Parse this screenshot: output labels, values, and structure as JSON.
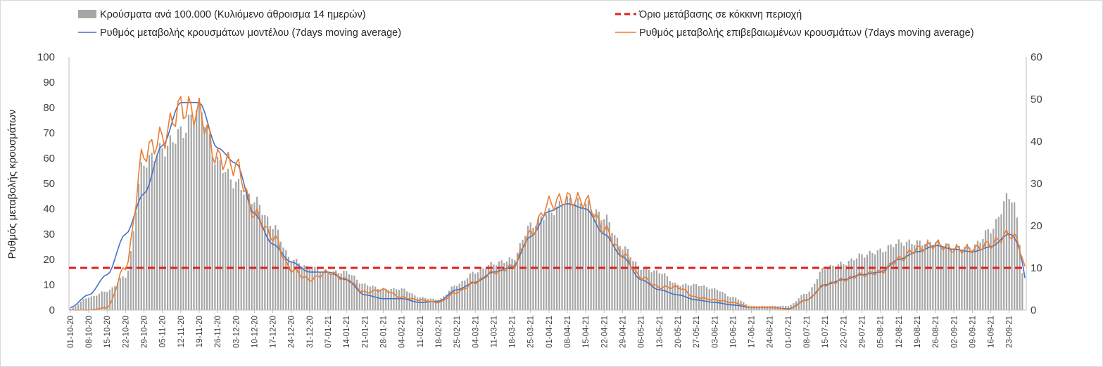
{
  "chart_data": {
    "type": "bar+line",
    "title": "",
    "xlabel": "",
    "ylabel": "Ρυθμός μεταβολής κρουσμάτων",
    "ylim_left": [
      0,
      100
    ],
    "ylim_right": [
      0,
      60
    ],
    "yticks_left": [
      0,
      10,
      20,
      30,
      40,
      50,
      60,
      70,
      80,
      90,
      100
    ],
    "yticks_right": [
      0,
      10,
      20,
      30,
      40,
      50,
      60
    ],
    "grid": false,
    "legend_position": "top",
    "x_tick_labels": [
      "01-10-20",
      "08-10-20",
      "15-10-20",
      "22-10-20",
      "29-10-20",
      "05-11-20",
      "12-11-20",
      "19-11-20",
      "26-11-20",
      "03-12-20",
      "10-12-20",
      "17-12-20",
      "24-12-20",
      "31-12-20",
      "07-01-21",
      "14-01-21",
      "21-01-21",
      "28-01-21",
      "04-02-21",
      "11-02-21",
      "18-02-21",
      "25-02-21",
      "04-03-21",
      "11-03-21",
      "18-03-21",
      "25-03-21",
      "01-04-21",
      "08-04-21",
      "15-04-21",
      "22-04-21",
      "29-04-21",
      "06-05-21",
      "13-05-21",
      "20-05-21",
      "27-05-21",
      "03-06-21",
      "10-06-21",
      "17-06-21",
      "24-06-21",
      "01-07-21",
      "08-07-21",
      "15-07-21",
      "22-07-21",
      "29-07-21",
      "05-08-21",
      "12-08-21",
      "19-08-21",
      "26-08-21",
      "02-09-21",
      "09-09-21",
      "16-09-21",
      "23-09-21"
    ],
    "threshold": 10,
    "series": [
      {
        "name": "Κρούσματα ανά 100.000 (Κυλιόμενο άθροισμα 14 ημερών)",
        "kind": "bar",
        "axis": "right",
        "color": "#a6a6a6",
        "weekly_values": [
          0.4,
          3,
          4.5,
          8,
          35,
          38,
          42,
          48,
          35,
          30,
          26,
          20,
          12,
          10,
          9,
          9,
          6,
          5,
          5,
          3,
          2.5,
          6,
          9,
          11,
          12,
          20,
          23,
          26,
          25,
          22,
          15,
          10,
          9,
          6,
          6,
          5,
          3,
          1,
          1,
          1,
          4,
          10,
          11,
          13,
          14,
          16,
          16,
          16,
          15,
          15,
          19,
          27
        ]
      },
      {
        "name": "Ρυθμός μεταβολής κρουσμάτων μοντέλου (7days moving average)",
        "kind": "line",
        "axis": "left",
        "color": "#4472c4",
        "weekly_values": [
          1,
          6,
          14,
          30,
          46,
          65,
          82,
          82,
          64,
          58,
          38,
          26,
          19,
          15,
          15,
          12,
          6,
          4.5,
          4.5,
          3,
          3.5,
          8,
          11,
          15,
          17,
          29,
          39,
          42,
          40,
          30,
          21,
          12,
          8,
          6,
          4,
          3,
          2,
          1,
          1,
          0.5,
          4,
          10,
          12,
          14,
          15,
          20,
          23,
          25.5,
          24,
          23,
          25,
          30
        ]
      },
      {
        "name": "Ρυθμός μεταβολής επιβεβαιωμένων κρουσμάτων (7days moving average)",
        "kind": "line",
        "axis": "left",
        "color": "#ed7d31",
        "weekly_values": [
          0,
          0,
          1,
          17,
          62,
          68,
          80,
          78,
          60,
          57,
          38,
          29,
          16,
          12,
          15,
          12,
          7,
          8,
          5,
          4,
          3,
          7,
          11,
          15,
          17,
          30,
          42,
          44,
          43,
          32,
          22,
          13,
          9,
          9,
          5,
          4,
          3,
          1,
          1,
          0.3,
          4,
          10,
          12,
          14,
          15,
          20,
          24,
          26,
          24,
          24,
          26,
          30
        ]
      },
      {
        "name": "Όριο μετάβασης σε κόκκινη περιοχή",
        "kind": "threshold",
        "axis": "right",
        "color": "#e02020",
        "value": 10
      }
    ]
  }
}
